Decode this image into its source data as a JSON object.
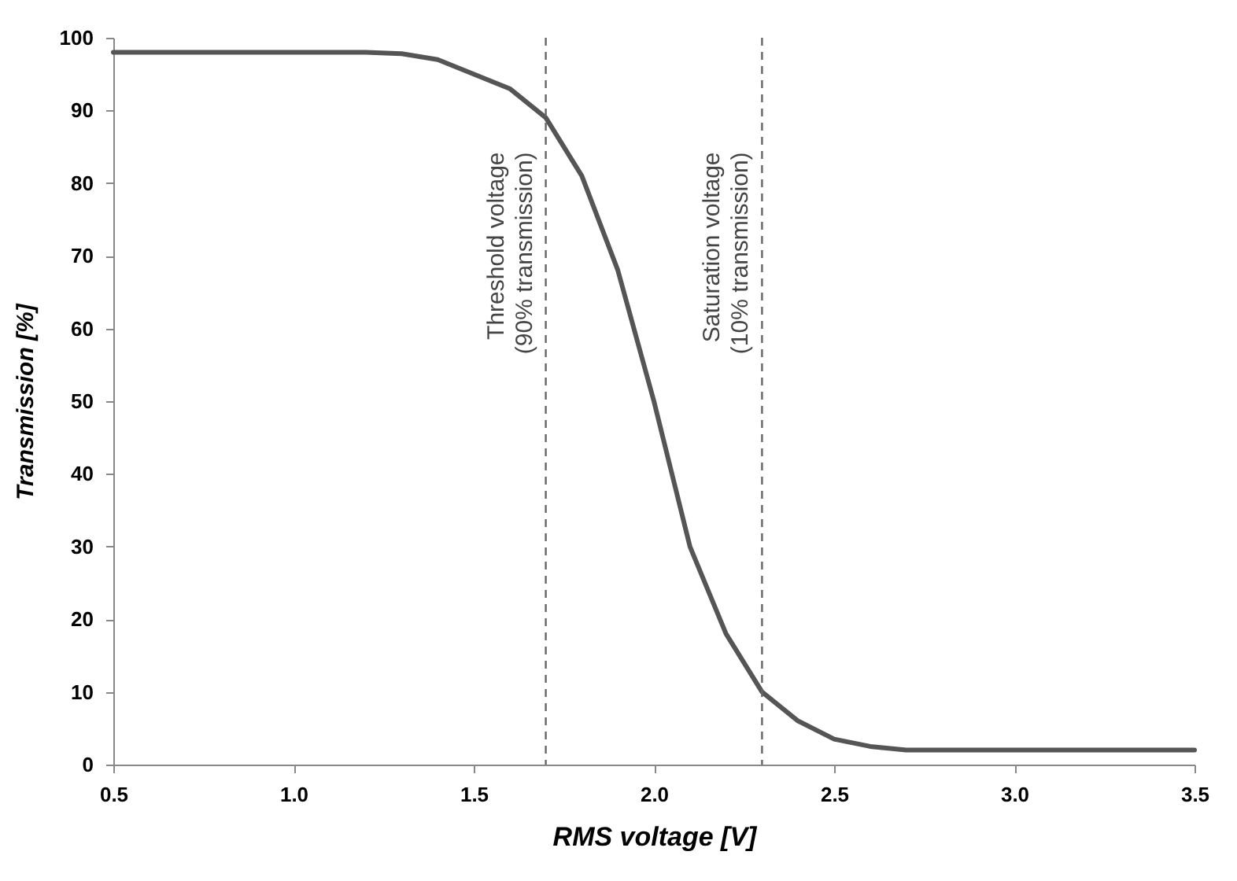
{
  "chart_data": {
    "type": "line",
    "xlabel": "RMS voltage [V]",
    "ylabel": "Transmission [%]",
    "x": [
      0.5,
      0.8,
      1.0,
      1.2,
      1.3,
      1.4,
      1.5,
      1.6,
      1.7,
      1.8,
      1.9,
      2.0,
      2.05,
      2.1,
      2.2,
      2.3,
      2.4,
      2.5,
      2.6,
      2.7,
      3.0,
      3.5
    ],
    "series": [
      {
        "color": "#555555",
        "values": [
          98,
          98,
          98,
          98,
          97.8,
          97,
          95,
          93,
          89,
          81,
          68,
          50,
          40,
          30,
          18,
          10,
          6,
          3.5,
          2.5,
          2,
          2,
          2
        ]
      }
    ],
    "xlim": [
      0.5,
      3.5
    ],
    "xticks": [
      0.5,
      {
        "value": 1,
        "label": "1.0"
      },
      1.5,
      {
        "value": 2,
        "label": "2.0"
      },
      2.5,
      {
        "value": 3,
        "label": "3.0"
      },
      3.5
    ],
    "ylim": [
      0,
      100
    ],
    "yticks": [
      0,
      10,
      20,
      30,
      40,
      50,
      60,
      70,
      80,
      90,
      100
    ],
    "grid": false,
    "marker": "none",
    "line_style": "solid",
    "ref_lines": [
      {
        "axis": "x",
        "value": 1.7,
        "label": "Threshold voltage\n(90% transmission)",
        "line_style": "dashed",
        "color": "#666666"
      },
      {
        "axis": "x",
        "value": 2.3,
        "label": "Saturation voltage\n(10% transmission)",
        "line_style": "dashed",
        "color": "#666666"
      }
    ]
  }
}
